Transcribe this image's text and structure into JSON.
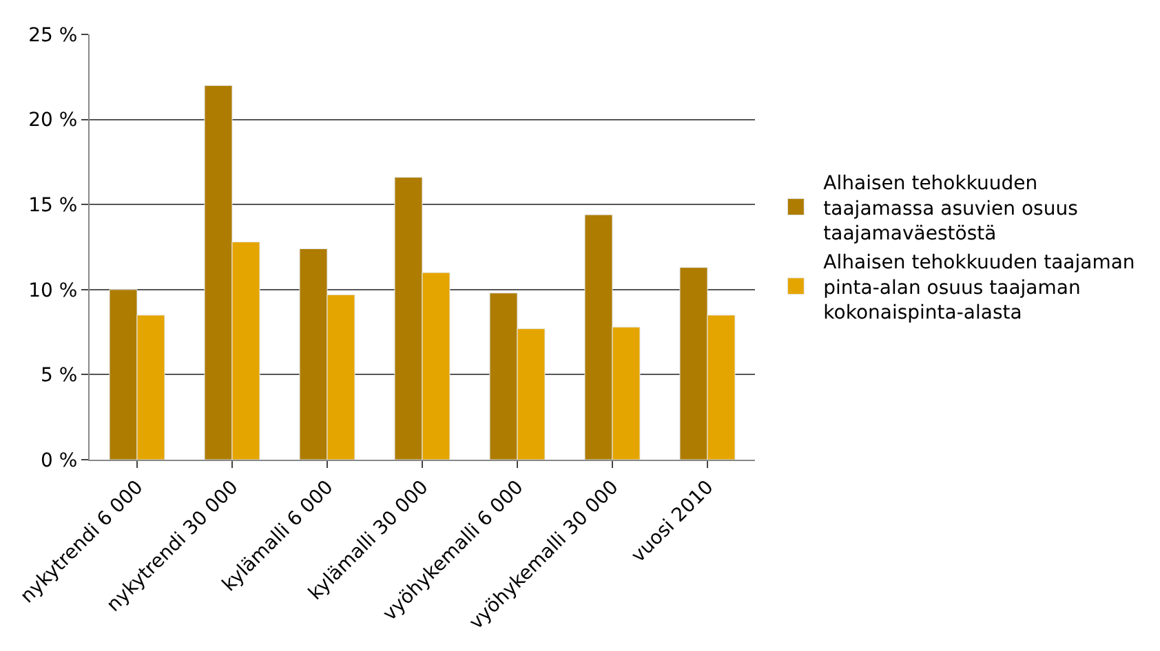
{
  "chart_data": {
    "type": "bar",
    "categories": [
      "nykytrendi 6 000",
      "nykytrendi 30 000",
      "kylämalli 6 000",
      "kylämalli 30 000",
      "vyöhykemalli 6 000",
      "vyöhykemalli 30 000",
      "vuosi 2010"
    ],
    "series": [
      {
        "name": "Alhaisen tehokkuuden taajamassa asuvien osuus taajamaväestöstä",
        "color": "#ae7c00",
        "values": [
          10.0,
          22.0,
          12.4,
          16.6,
          9.8,
          14.4,
          11.3
        ]
      },
      {
        "name": "Alhaisen tehokkuuden taajaman pinta-alan osuus taajaman kokonaispinta-alasta",
        "color": "#e5a500",
        "values": [
          8.5,
          12.8,
          9.7,
          11.0,
          7.7,
          7.8,
          8.5
        ]
      }
    ],
    "ylim": [
      0,
      25
    ],
    "yticks": [
      {
        "value": 0,
        "label": "0 %"
      },
      {
        "value": 5,
        "label": "5 %"
      },
      {
        "value": 10,
        "label": "10 %"
      },
      {
        "value": 15,
        "label": "15 %"
      },
      {
        "value": 20,
        "label": "20 %"
      },
      {
        "value": 25,
        "label": "25 %"
      }
    ],
    "grid": "y",
    "legend": "right"
  }
}
